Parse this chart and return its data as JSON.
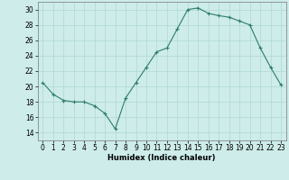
{
  "x": [
    0,
    1,
    2,
    3,
    4,
    5,
    6,
    7,
    8,
    9,
    10,
    11,
    12,
    13,
    14,
    15,
    16,
    17,
    18,
    19,
    20,
    21,
    22,
    23
  ],
  "y": [
    20.5,
    19.0,
    18.2,
    18.0,
    18.0,
    17.5,
    16.5,
    14.5,
    18.5,
    20.5,
    22.5,
    24.5,
    25.0,
    27.5,
    30.0,
    30.2,
    29.5,
    29.2,
    29.0,
    28.5,
    28.0,
    25.0,
    22.5,
    20.2
  ],
  "line_color": "#2e7d6e",
  "marker": "+",
  "marker_size": 3,
  "bg_color": "#cdecea",
  "grid_color": "#b0d8d4",
  "xlabel": "Humidex (Indice chaleur)",
  "xlim": [
    -0.5,
    23.5
  ],
  "ylim": [
    13,
    31
  ],
  "yticks": [
    14,
    16,
    18,
    20,
    22,
    24,
    26,
    28,
    30
  ],
  "xticks": [
    0,
    1,
    2,
    3,
    4,
    5,
    6,
    7,
    8,
    9,
    10,
    11,
    12,
    13,
    14,
    15,
    16,
    17,
    18,
    19,
    20,
    21,
    22,
    23
  ],
  "label_fontsize": 6,
  "tick_fontsize": 5.5
}
